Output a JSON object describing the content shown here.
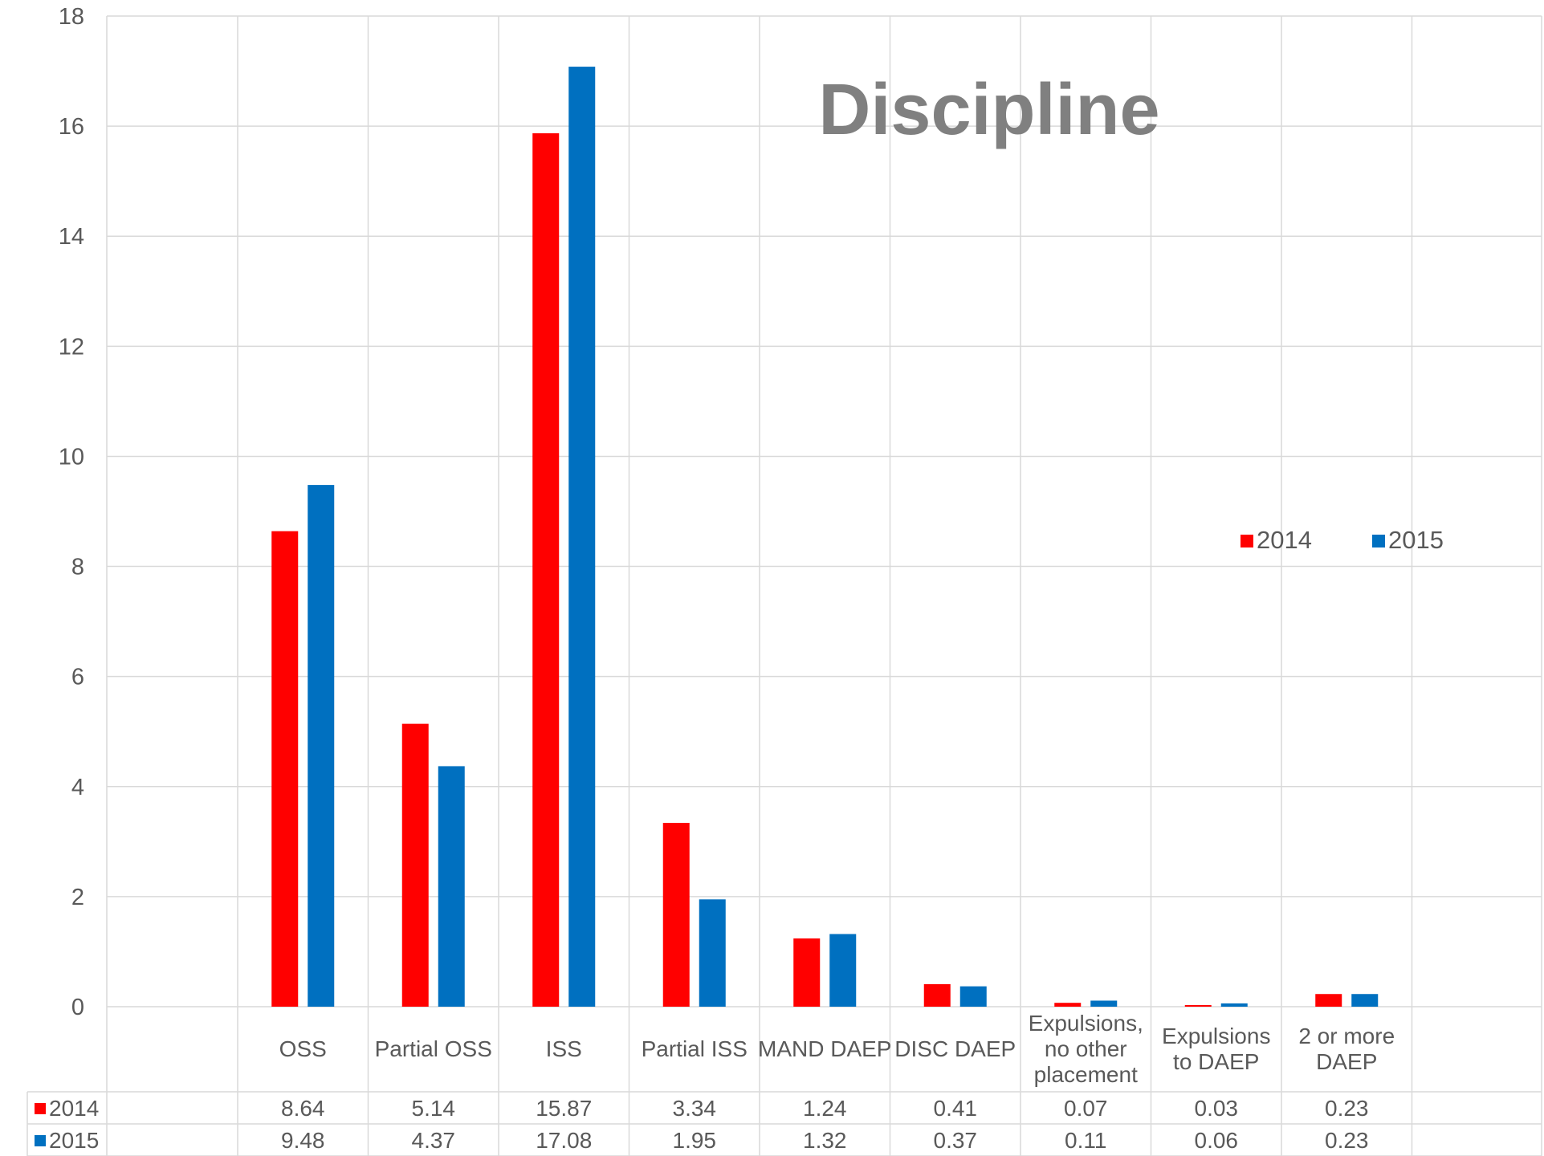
{
  "chart_data": {
    "type": "bar",
    "title": "Discipline",
    "categories": [
      "OSS",
      "Partial OSS",
      "ISS",
      "Partial ISS",
      "MAND DAEP",
      "DISC DAEP",
      "Expulsions, no other placement",
      "Expulsions to DAEP",
      "2 or more DAEP"
    ],
    "series": [
      {
        "name": "2014",
        "color": "#ff0000",
        "values": [
          8.64,
          5.14,
          15.87,
          3.34,
          1.24,
          0.41,
          0.07,
          0.03,
          0.23
        ]
      },
      {
        "name": "2015",
        "color": "#0070c0",
        "values": [
          9.48,
          4.37,
          17.08,
          1.95,
          1.32,
          0.37,
          0.11,
          0.06,
          0.23
        ]
      }
    ],
    "value_labels": {
      "2014": [
        "8.64",
        "5.14",
        "15.87",
        "3.34",
        "1.24",
        "0.41",
        "0.07",
        "0.03",
        "0.23"
      ],
      "2015": [
        "9.48",
        "4.37",
        "17.08",
        "1.95",
        "1.32",
        "0.37",
        "0.11",
        "0.06",
        "0.23"
      ]
    },
    "ylim": [
      0,
      18
    ],
    "yticks": [
      "0",
      "2",
      "4",
      "6",
      "8",
      "10",
      "12",
      "14",
      "16",
      "18"
    ],
    "grid": true,
    "legend": "right",
    "data_table": true,
    "xlabel": "",
    "ylabel": ""
  }
}
